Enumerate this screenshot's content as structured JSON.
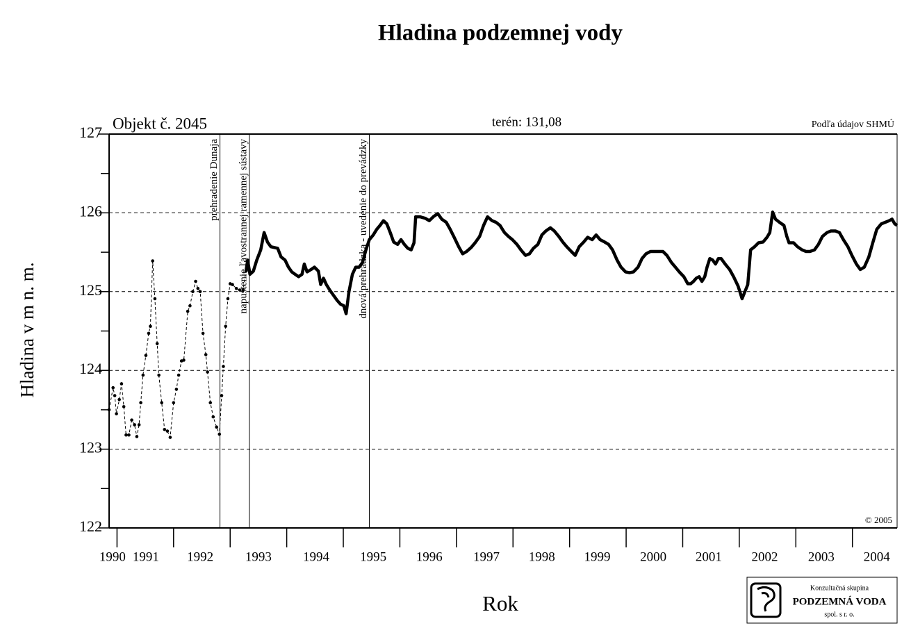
{
  "chart_data": {
    "type": "line",
    "title": "Hladina podzemnej vody",
    "xlabel": "Rok",
    "ylabel": "Hladina v m n. m.",
    "annotations": {
      "object": "Objekt č. 2045",
      "terrain": "terén: 131,08",
      "source": "Podľa údajov SHMÚ",
      "copyright": "© 2005"
    },
    "xlim": [
      1990.86,
      2004.79
    ],
    "ylim": [
      122,
      127
    ],
    "yticks": [
      122,
      123,
      124,
      125,
      126,
      127
    ],
    "yminorticks": [
      122.5,
      123.5,
      124.5,
      125.5,
      126.5
    ],
    "xticks": [
      {
        "value": 1990.92,
        "label": "1990"
      },
      {
        "value": 1991.51,
        "label": "1991"
      },
      {
        "value": 1992.47,
        "label": "1992"
      },
      {
        "value": 1993.5,
        "label": "1993"
      },
      {
        "value": 1994.52,
        "label": "1994"
      },
      {
        "value": 1995.53,
        "label": "1995"
      },
      {
        "value": 1996.52,
        "label": "1996"
      },
      {
        "value": 1997.53,
        "label": "1997"
      },
      {
        "value": 1998.51,
        "label": "1998"
      },
      {
        "value": 1999.49,
        "label": "1999"
      },
      {
        "value": 2000.48,
        "label": "2000"
      },
      {
        "value": 2001.46,
        "label": "2001"
      },
      {
        "value": 2002.45,
        "label": "2002"
      },
      {
        "value": 2003.45,
        "label": "2003"
      },
      {
        "value": 2004.43,
        "label": "2004"
      }
    ],
    "xmajorticks": [
      1991,
      1992,
      1993,
      1994,
      1995,
      1996,
      1997,
      1998,
      1999,
      2000,
      2001,
      2002,
      2003,
      2004
    ],
    "grid": true,
    "events": [
      {
        "x": 1992.82,
        "label": "prehradenie Dunaja"
      },
      {
        "x": 1993.34,
        "label": "napustenie ľavostrannej ramennej sústavy"
      },
      {
        "x": 1995.46,
        "label": "dnová prehrádzka - uvedenie do prevádzky"
      }
    ],
    "series": [
      {
        "color": "#000000",
        "style": "dashed",
        "x": [
          1990.86,
          1990.93,
          1990.96,
          1990.99,
          1991.04,
          1991.08,
          1991.12,
          1991.16,
          1991.21,
          1991.26,
          1991.31,
          1991.35,
          1991.39,
          1991.42,
          1991.46,
          1991.51,
          1991.56,
          1991.59,
          1991.63,
          1991.67,
          1991.71,
          1991.74,
          1991.79,
          1991.84,
          1991.89,
          1991.94,
          1992.0,
          1992.05,
          1992.09,
          1992.14,
          1992.18,
          1992.25,
          1992.29,
          1992.34,
          1992.39,
          1992.43,
          1992.47,
          1992.52,
          1992.57,
          1992.6,
          1992.65,
          1992.7,
          1992.76,
          1992.81,
          1992.85,
          1992.88,
          1992.92,
          1992.96,
          1993.0,
          1993.04,
          1993.11,
          1993.17,
          1993.23,
          1993.28
        ],
        "values": [
          123.5,
          123.78,
          123.68,
          123.45,
          123.63,
          123.83,
          123.54,
          123.18,
          123.18,
          123.37,
          123.31,
          123.16,
          123.31,
          123.59,
          123.94,
          124.19,
          124.47,
          124.56,
          125.39,
          124.91,
          124.34,
          123.94,
          123.59,
          123.25,
          123.23,
          123.15,
          123.59,
          123.76,
          123.94,
          124.12,
          124.13,
          124.75,
          124.82,
          125.0,
          125.13,
          125.04,
          125.0,
          124.47,
          124.2,
          123.98,
          123.59,
          123.41,
          123.28,
          123.19,
          123.68,
          124.05,
          124.56,
          124.91,
          125.1,
          125.09,
          125.04,
          125.02,
          125.02,
          125.26
        ]
      },
      {
        "color": "#000000",
        "style": "bold",
        "x": [
          1993.28,
          1993.31,
          1993.35,
          1993.41,
          1993.47,
          1993.54,
          1993.6,
          1993.66,
          1993.72,
          1993.84,
          1993.9,
          1993.97,
          1994.03,
          1994.09,
          1994.15,
          1994.21,
          1994.27,
          1994.31,
          1994.36,
          1994.43,
          1994.49,
          1994.56,
          1994.6,
          1994.65,
          1994.7,
          1994.76,
          1994.83,
          1994.89,
          1994.95,
          1995.01,
          1995.05,
          1995.1,
          1995.16,
          1995.22,
          1995.28,
          1995.34,
          1995.4,
          1995.46,
          1995.53,
          1995.59,
          1995.65,
          1995.71,
          1995.77,
          1995.83,
          1995.89,
          1995.96,
          1996.02,
          1996.08,
          1996.14,
          1996.2,
          1996.25,
          1996.28,
          1996.36,
          1996.45,
          1996.52,
          1996.59,
          1996.67,
          1996.74,
          1996.82,
          1996.89,
          1996.96,
          1997.04,
          1997.11,
          1997.18,
          1997.26,
          1997.33,
          1997.41,
          1997.48,
          1997.55,
          1997.63,
          1997.7,
          1997.77,
          1997.85,
          1997.92,
          1997.99,
          1998.07,
          1998.14,
          1998.22,
          1998.29,
          1998.36,
          1998.44,
          1998.51,
          1998.58,
          1998.66,
          1998.73,
          1998.81,
          1998.88,
          1998.95,
          1999.03,
          1999.1,
          1999.17,
          1999.25,
          1999.32,
          1999.4,
          1999.47,
          1999.54,
          1999.62,
          1999.69,
          1999.76,
          1999.84,
          1999.91,
          1999.99,
          2000.06,
          2000.13,
          2000.21,
          2000.28,
          2000.35,
          2000.43,
          2000.5,
          2000.57,
          2000.65,
          2000.72,
          2000.8,
          2000.87,
          2000.94,
          2001.02,
          2001.09,
          2001.14,
          2001.19,
          2001.24,
          2001.29,
          2001.34,
          2001.39,
          2001.43,
          2001.48,
          2001.53,
          2001.58,
          2001.63,
          2001.68,
          2001.75,
          2001.83,
          2001.9,
          2001.98,
          2002.05,
          2002.1,
          2002.15,
          2002.2,
          2002.27,
          2002.34,
          2002.42,
          2002.49,
          2002.54,
          2002.59,
          2002.64,
          2002.71,
          2002.79,
          2002.84,
          2002.88,
          2002.96,
          2003.03,
          2003.11,
          2003.18,
          2003.25,
          2003.33,
          2003.4,
          2003.47,
          2003.55,
          2003.62,
          2003.7,
          2003.77,
          2003.84,
          2003.92,
          2003.99,
          2004.07,
          2004.14,
          2004.21,
          2004.29,
          2004.36,
          2004.43,
          2004.51,
          2004.58,
          2004.65,
          2004.7,
          2004.75,
          2004.79
        ],
        "values": [
          125.26,
          125.4,
          125.22,
          125.26,
          125.4,
          125.53,
          125.75,
          125.63,
          125.57,
          125.55,
          125.44,
          125.4,
          125.31,
          125.25,
          125.22,
          125.19,
          125.22,
          125.35,
          125.25,
          125.28,
          125.31,
          125.26,
          125.09,
          125.17,
          125.09,
          125.02,
          124.95,
          124.89,
          124.84,
          124.82,
          124.72,
          125.0,
          125.22,
          125.31,
          125.31,
          125.37,
          125.53,
          125.66,
          125.72,
          125.79,
          125.84,
          125.9,
          125.86,
          125.75,
          125.63,
          125.6,
          125.66,
          125.6,
          125.55,
          125.53,
          125.62,
          125.95,
          125.95,
          125.93,
          125.9,
          125.95,
          125.99,
          125.92,
          125.88,
          125.79,
          125.69,
          125.57,
          125.48,
          125.51,
          125.56,
          125.62,
          125.7,
          125.84,
          125.95,
          125.9,
          125.88,
          125.84,
          125.75,
          125.7,
          125.66,
          125.6,
          125.53,
          125.46,
          125.48,
          125.55,
          125.6,
          125.72,
          125.77,
          125.81,
          125.77,
          125.7,
          125.63,
          125.57,
          125.51,
          125.46,
          125.57,
          125.63,
          125.69,
          125.66,
          125.72,
          125.66,
          125.63,
          125.6,
          125.53,
          125.4,
          125.31,
          125.25,
          125.24,
          125.25,
          125.31,
          125.42,
          125.48,
          125.51,
          125.51,
          125.51,
          125.51,
          125.46,
          125.37,
          125.31,
          125.25,
          125.19,
          125.1,
          125.1,
          125.13,
          125.17,
          125.19,
          125.13,
          125.19,
          125.31,
          125.42,
          125.4,
          125.35,
          125.42,
          125.42,
          125.35,
          125.28,
          125.19,
          125.07,
          124.91,
          125.0,
          125.09,
          125.53,
          125.57,
          125.62,
          125.63,
          125.69,
          125.75,
          126.01,
          125.92,
          125.88,
          125.84,
          125.7,
          125.62,
          125.62,
          125.57,
          125.53,
          125.51,
          125.51,
          125.53,
          125.6,
          125.7,
          125.75,
          125.77,
          125.77,
          125.75,
          125.66,
          125.57,
          125.46,
          125.35,
          125.28,
          125.31,
          125.44,
          125.62,
          125.79,
          125.86,
          125.88,
          125.9,
          125.92,
          125.86,
          125.84
        ]
      }
    ]
  },
  "logo": {
    "top": "Konzultačná skupina",
    "name": "PODZEMNÁ VODA",
    "bottom": "spol. s r. o."
  }
}
